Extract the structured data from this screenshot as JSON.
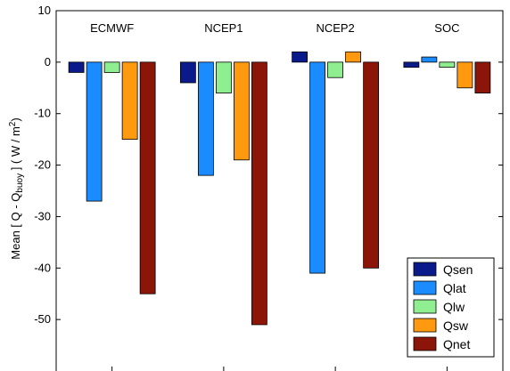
{
  "chart_data": {
    "type": "bar",
    "categories": [
      "ECMWF",
      "NCEP1",
      "NCEP2",
      "SOC"
    ],
    "series": [
      {
        "name": "Qsen",
        "color": "#0a1a8a",
        "values": [
          -2,
          -4,
          2,
          -1
        ]
      },
      {
        "name": "Qlat",
        "color": "#1a8cff",
        "values": [
          -27,
          -22,
          -41,
          1
        ]
      },
      {
        "name": "Qlw",
        "color": "#8fef90",
        "values": [
          -2,
          -6,
          -3,
          -1
        ]
      },
      {
        "name": "Qsw",
        "color": "#ff9a10",
        "values": [
          -15,
          -19,
          2,
          -5
        ]
      },
      {
        "name": "Qnet",
        "color": "#8b1508",
        "values": [
          -45,
          -51,
          -40,
          -6
        ]
      }
    ],
    "ylim": [
      -60,
      10
    ],
    "yticks": [
      10,
      0,
      -10,
      -20,
      -30,
      -40,
      -50
    ],
    "ylabel_parts": {
      "pre": "Mean [ Q - Q",
      "sub": "buoy",
      "post": " ]   ( W / m",
      "sup": "2",
      "end": ")"
    },
    "legend_position": "bottom-right",
    "grid": false
  }
}
